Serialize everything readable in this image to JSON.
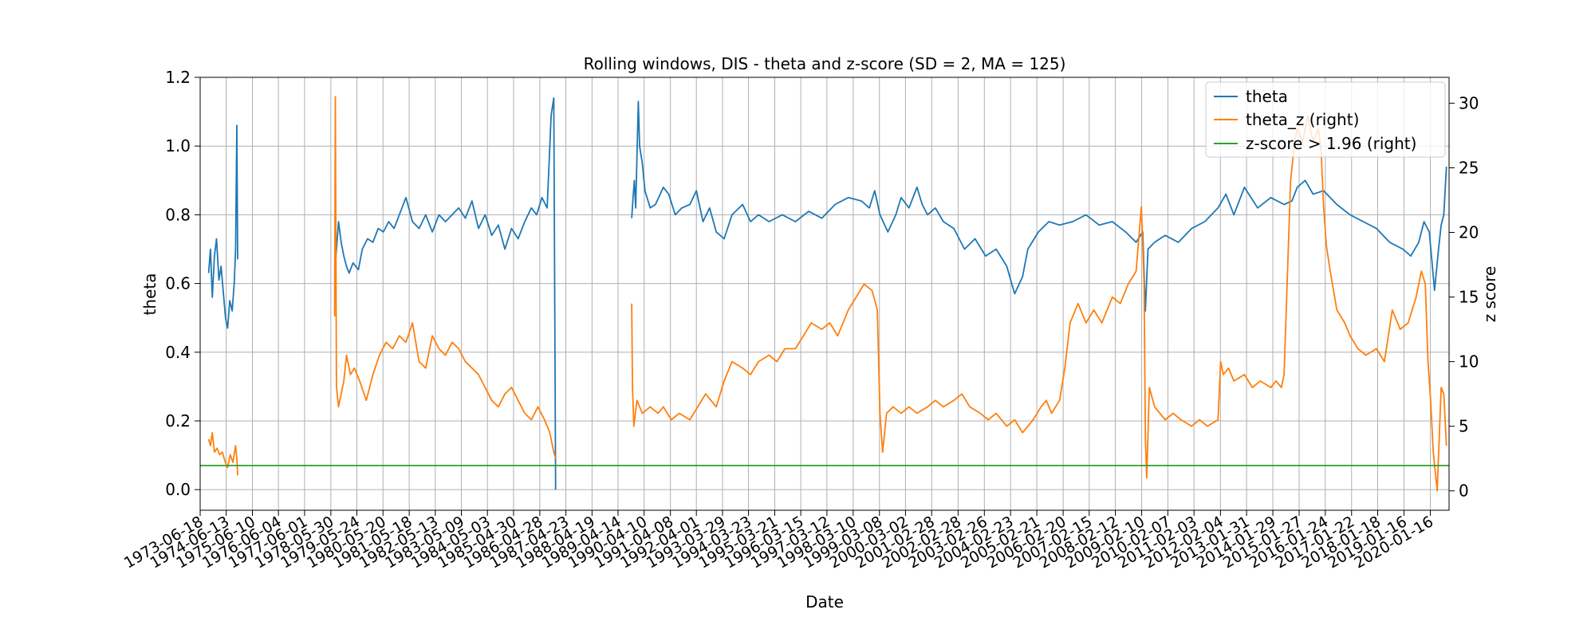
{
  "chart_data": {
    "type": "line",
    "title": "Rolling windows, DIS - theta and z-score (SD = 2, MA = 125)",
    "xlabel": "Date",
    "ylabel": "theta",
    "y2label": "z score",
    "grid": true,
    "legend_position": "top-right",
    "xlim": [
      "1973-06-18",
      "2020-10-01"
    ],
    "ylim": [
      -0.06,
      1.2
    ],
    "y2lim": [
      -1.5,
      32
    ],
    "y_ticks": [
      0.0,
      0.2,
      0.4,
      0.6,
      0.8,
      1.0,
      1.2
    ],
    "y_tick_labels": [
      "0.0",
      "0.2",
      "0.4",
      "0.6",
      "0.8",
      "1.0",
      "1.2"
    ],
    "y2_ticks": [
      0,
      5,
      10,
      15,
      20,
      25,
      30
    ],
    "y2_tick_labels": [
      "0",
      "5",
      "10",
      "15",
      "20",
      "25",
      "30"
    ],
    "x_tick_labels": [
      "1973-06-18",
      "1974-06-13",
      "1975-06-10",
      "1976-06-04",
      "1977-06-01",
      "1978-05-30",
      "1979-05-24",
      "1980-05-20",
      "1981-05-18",
      "1982-05-13",
      "1983-05-09",
      "1984-05-03",
      "1985-04-30",
      "1986-04-28",
      "1987-04-23",
      "1988-04-19",
      "1989-04-14",
      "1990-04-10",
      "1991-04-08",
      "1992-04-01",
      "1993-03-29",
      "1994-03-23",
      "1995-03-21",
      "1996-03-15",
      "1997-03-12",
      "1998-03-10",
      "1999-03-08",
      "2000-03-02",
      "2001-02-28",
      "2002-02-28",
      "2003-02-26",
      "2004-02-23",
      "2005-02-21",
      "2006-02-20",
      "2007-02-15",
      "2008-02-12",
      "2009-02-10",
      "2010-02-07",
      "2011-02-03",
      "2012-02-04",
      "2013-01-31",
      "2014-01-29",
      "2015-01-27",
      "2016-01-24",
      "2017-01-22",
      "2018-01-18",
      "2019-01-16",
      "2020-01-16"
    ],
    "series": [
      {
        "name": "theta",
        "axis": "left",
        "color": "#1f77b4",
        "segments": [
          {
            "x": [
              1973.78,
              1973.85,
              1973.92,
              1974.0,
              1974.08,
              1974.17,
              1974.25,
              1974.33,
              1974.42,
              1974.5,
              1974.58,
              1974.67,
              1974.75,
              1974.8,
              1974.85,
              1974.88
            ],
            "y": [
              0.63,
              0.7,
              0.56,
              0.68,
              0.73,
              0.61,
              0.65,
              0.58,
              0.5,
              0.47,
              0.55,
              0.52,
              0.6,
              0.7,
              1.06,
              0.67
            ]
          },
          {
            "x": [
              1978.55,
              1978.62,
              1978.7,
              1978.8,
              1978.9,
              1979.0,
              1979.1,
              1979.25,
              1979.45,
              1979.6,
              1979.8,
              1980.0,
              1980.2,
              1980.4,
              1980.6,
              1980.8,
              1981.0,
              1981.25,
              1981.5,
              1981.75,
              1982.0,
              1982.25,
              1982.5,
              1982.75,
              1983.0,
              1983.25,
              1983.5,
              1983.75,
              1984.0,
              1984.25,
              1984.5,
              1984.75,
              1985.0,
              1985.25,
              1985.5,
              1985.75,
              1986.0,
              1986.2,
              1986.4,
              1986.6,
              1986.75,
              1986.85,
              1986.92
            ],
            "y": [
              0.63,
              0.7,
              0.78,
              0.72,
              0.68,
              0.65,
              0.63,
              0.66,
              0.64,
              0.7,
              0.73,
              0.72,
              0.76,
              0.75,
              0.78,
              0.76,
              0.8,
              0.85,
              0.78,
              0.76,
              0.8,
              0.75,
              0.8,
              0.78,
              0.8,
              0.82,
              0.79,
              0.84,
              0.76,
              0.8,
              0.74,
              0.77,
              0.7,
              0.76,
              0.73,
              0.78,
              0.82,
              0.8,
              0.85,
              0.82,
              1.09,
              1.14,
              0.0
            ]
          },
          {
            "x": [
              1989.8,
              1989.85,
              1989.9,
              1989.95,
              1990.0,
              1990.05,
              1990.1,
              1990.2,
              1990.3,
              1990.5,
              1990.7,
              1991.0,
              1991.2,
              1991.45,
              1991.7,
              1992.0,
              1992.25,
              1992.5,
              1992.75,
              1993.0,
              1993.3,
              1993.6,
              1994.0,
              1994.3,
              1994.6,
              1995.0,
              1995.5,
              1996.0,
              1996.5,
              1997.0,
              1997.5,
              1998.0,
              1998.5,
              1998.8,
              1999.0,
              1999.2,
              1999.5,
              1999.8,
              2000.0,
              2000.3,
              2000.6,
              2000.8,
              2001.0,
              2001.3,
              2001.6,
              2002.0,
              2002.4,
              2002.8,
              2003.2,
              2003.6,
              2004.0,
              2004.3,
              2004.6,
              2004.8,
              2005.2,
              2005.6,
              2006.0,
              2006.5,
              2007.0,
              2007.5,
              2008.0,
              2008.5,
              2008.9,
              2009.15,
              2009.25,
              2009.35,
              2009.6,
              2010.0,
              2010.5,
              2011.0,
              2011.5,
              2012.0,
              2012.3,
              2012.6,
              2013.0,
              2013.5,
              2014.0,
              2014.5,
              2014.8,
              2015.0,
              2015.3,
              2015.6,
              2016.0,
              2016.5,
              2017.0,
              2017.5,
              2018.0,
              2018.5,
              2019.0,
              2019.3,
              2019.6,
              2019.8,
              2020.0,
              2020.2,
              2020.35,
              2020.45,
              2020.55,
              2020.65
            ],
            "y": [
              0.79,
              0.85,
              0.9,
              0.82,
              0.97,
              1.13,
              1.0,
              0.95,
              0.87,
              0.82,
              0.83,
              0.88,
              0.86,
              0.8,
              0.82,
              0.83,
              0.87,
              0.78,
              0.82,
              0.75,
              0.73,
              0.8,
              0.83,
              0.78,
              0.8,
              0.78,
              0.8,
              0.78,
              0.81,
              0.79,
              0.83,
              0.85,
              0.84,
              0.82,
              0.87,
              0.8,
              0.75,
              0.8,
              0.85,
              0.82,
              0.88,
              0.83,
              0.8,
              0.82,
              0.78,
              0.76,
              0.7,
              0.73,
              0.68,
              0.7,
              0.65,
              0.57,
              0.62,
              0.7,
              0.75,
              0.78,
              0.77,
              0.78,
              0.8,
              0.77,
              0.78,
              0.75,
              0.72,
              0.75,
              0.52,
              0.7,
              0.72,
              0.74,
              0.72,
              0.76,
              0.78,
              0.82,
              0.86,
              0.8,
              0.88,
              0.82,
              0.85,
              0.83,
              0.84,
              0.88,
              0.9,
              0.86,
              0.87,
              0.83,
              0.8,
              0.78,
              0.76,
              0.72,
              0.7,
              0.68,
              0.72,
              0.78,
              0.75,
              0.58,
              0.7,
              0.77,
              0.8,
              0.94
            ]
          }
        ]
      },
      {
        "name": "theta_z (right)",
        "axis": "right",
        "color": "#ff7f0e",
        "segments": [
          {
            "x": [
              1973.78,
              1973.85,
              1973.92,
              1974.0,
              1974.1,
              1974.2,
              1974.3,
              1974.4,
              1974.5,
              1974.6,
              1974.7,
              1974.8,
              1974.85,
              1974.88
            ],
            "y": [
              4.0,
              3.5,
              4.5,
              3.0,
              3.3,
              2.8,
              3.0,
              2.3,
              1.8,
              2.8,
              2.2,
              3.5,
              2.5,
              1.2
            ]
          },
          {
            "x": [
              1978.55,
              1978.58,
              1978.62,
              1978.7,
              1978.8,
              1978.9,
              1979.0,
              1979.15,
              1979.3,
              1979.5,
              1979.75,
              1980.0,
              1980.25,
              1980.5,
              1980.75,
              1981.0,
              1981.25,
              1981.5,
              1981.75,
              1982.0,
              1982.25,
              1982.5,
              1982.75,
              1983.0,
              1983.25,
              1983.5,
              1983.75,
              1984.0,
              1984.25,
              1984.5,
              1984.75,
              1985.0,
              1985.25,
              1985.5,
              1985.75,
              1986.0,
              1986.25,
              1986.5,
              1986.7,
              1986.85,
              1986.92
            ],
            "y": [
              13.5,
              30.5,
              8.0,
              6.5,
              7.5,
              8.5,
              10.5,
              9.0,
              9.5,
              8.5,
              7.0,
              9.0,
              10.5,
              11.5,
              11.0,
              12.0,
              11.5,
              13.0,
              10.0,
              9.5,
              12.0,
              11.0,
              10.5,
              11.5,
              11.0,
              10.0,
              9.5,
              9.0,
              8.0,
              7.0,
              6.5,
              7.5,
              8.0,
              7.0,
              6.0,
              5.5,
              6.5,
              5.5,
              4.5,
              3.0,
              2.5
            ]
          },
          {
            "x": [
              1989.8,
              1989.83,
              1989.88,
              1990.0,
              1990.2,
              1990.5,
              1990.8,
              1991.0,
              1991.3,
              1991.6,
              1992.0,
              1992.3,
              1992.6,
              1993.0,
              1993.3,
              1993.6,
              1994.0,
              1994.3,
              1994.6,
              1995.0,
              1995.3,
              1995.6,
              1996.0,
              1996.3,
              1996.6,
              1997.0,
              1997.3,
              1997.6,
              1998.0,
              1998.3,
              1998.6,
              1998.9,
              1999.1,
              1999.2,
              1999.3,
              1999.45,
              1999.7,
              2000.0,
              2000.3,
              2000.6,
              2001.0,
              2001.3,
              2001.6,
              2002.0,
              2002.3,
              2002.6,
              2003.0,
              2003.3,
              2003.6,
              2004.0,
              2004.3,
              2004.6,
              2005.0,
              2005.3,
              2005.5,
              2005.7,
              2006.0,
              2006.2,
              2006.4,
              2006.7,
              2007.0,
              2007.3,
              2007.6,
              2008.0,
              2008.3,
              2008.6,
              2008.9,
              2009.1,
              2009.2,
              2009.25,
              2009.3,
              2009.4,
              2009.6,
              2010.0,
              2010.3,
              2010.6,
              2011.0,
              2011.3,
              2011.6,
              2012.0,
              2012.1,
              2012.2,
              2012.4,
              2012.6,
              2013.0,
              2013.3,
              2013.6,
              2014.0,
              2014.2,
              2014.4,
              2014.5,
              2014.6,
              2014.75,
              2014.9,
              2015.0,
              2015.2,
              2015.4,
              2015.6,
              2015.8,
              2015.9,
              2016.0,
              2016.1,
              2016.25,
              2016.5,
              2016.8,
              2017.0,
              2017.3,
              2017.6,
              2018.0,
              2018.3,
              2018.45,
              2018.6,
              2018.9,
              2019.2,
              2019.5,
              2019.7,
              2019.85,
              2019.95,
              2020.05,
              2020.15,
              2020.3,
              2020.45,
              2020.55,
              2020.65
            ],
            "y": [
              14.5,
              8.0,
              5.0,
              7.0,
              6.0,
              6.5,
              6.0,
              6.5,
              5.5,
              6.0,
              5.5,
              6.5,
              7.5,
              6.5,
              8.5,
              10.0,
              9.5,
              9.0,
              10.0,
              10.5,
              10.0,
              11.0,
              11.0,
              12.0,
              13.0,
              12.5,
              13.0,
              12.0,
              14.0,
              15.0,
              16.0,
              15.5,
              14.0,
              6.0,
              3.0,
              6.0,
              6.5,
              6.0,
              6.5,
              6.0,
              6.5,
              7.0,
              6.5,
              7.0,
              7.5,
              6.5,
              6.0,
              5.5,
              6.0,
              5.0,
              5.5,
              4.5,
              5.5,
              6.5,
              7.0,
              6.0,
              7.0,
              9.5,
              13.0,
              14.5,
              13.0,
              14.0,
              13.0,
              15.0,
              14.5,
              16.0,
              17.0,
              22.0,
              16.0,
              4.0,
              1.0,
              8.0,
              6.5,
              5.5,
              6.0,
              5.5,
              5.0,
              5.5,
              5.0,
              5.5,
              10.0,
              9.0,
              9.5,
              8.5,
              9.0,
              8.0,
              8.5,
              8.0,
              8.5,
              8.0,
              9.0,
              15.0,
              24.0,
              27.0,
              28.0,
              27.0,
              29.0,
              27.0,
              28.0,
              26.5,
              22.0,
              19.0,
              17.0,
              14.0,
              13.0,
              12.0,
              11.0,
              10.5,
              11.0,
              10.0,
              12.0,
              14.0,
              12.5,
              13.0,
              15.0,
              17.0,
              16.0,
              10.0,
              7.0,
              3.0,
              0.0,
              8.0,
              7.5,
              3.5
            ]
          }
        ]
      },
      {
        "name": "z-score > 1.96 (right)",
        "axis": "right",
        "color": "#2ca02c",
        "segments": [
          {
            "x": [
              1973.46,
              2020.75
            ],
            "y": [
              1.96,
              1.96
            ]
          }
        ]
      }
    ]
  }
}
